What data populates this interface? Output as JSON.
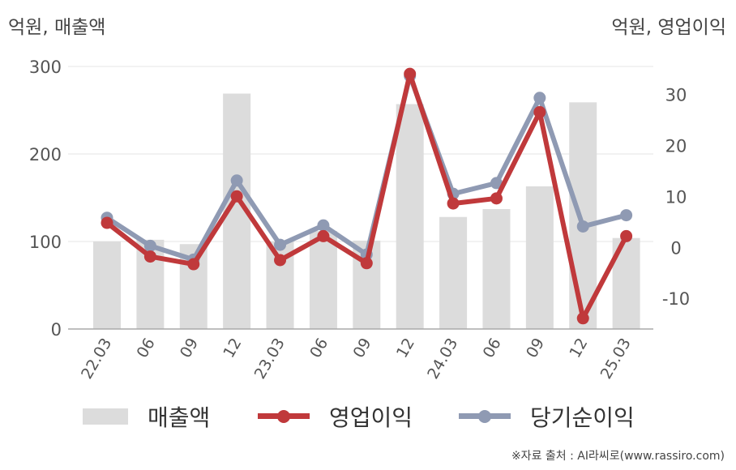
{
  "units": {
    "left": "억원, 매출액",
    "right": "억원, 영업이익"
  },
  "chart_data": {
    "type": "bar",
    "categories": [
      "22.03",
      "06",
      "09",
      "12",
      "23.03",
      "06",
      "09",
      "12",
      "24.03",
      "06",
      "09",
      "12",
      "25.03"
    ],
    "series": [
      {
        "name": "매출액",
        "type": "bar",
        "axis": "left",
        "color": "#dcdcdc",
        "values": [
          100,
          102,
          97,
          269,
          100,
          112,
          101,
          257,
          128,
          137,
          163,
          259,
          104
        ]
      },
      {
        "name": "영업이익",
        "type": "line",
        "axis": "right",
        "color": "#c0393b",
        "values": [
          4.8,
          -1.8,
          -3.3,
          10,
          -2.5,
          2.2,
          -3.1,
          34,
          8.6,
          9.6,
          26.5,
          -13.9,
          2.2
        ]
      },
      {
        "name": "당기순이익",
        "type": "line",
        "axis": "right",
        "color": "#8f9ab3",
        "values": [
          5.8,
          0.3,
          -2.4,
          13.1,
          0.5,
          4.3,
          -1.4,
          33.6,
          10.5,
          12.6,
          29.3,
          4.1,
          6.3
        ]
      }
    ],
    "y_left": {
      "ylim": [
        0,
        300
      ],
      "ticks": [
        0,
        100,
        200,
        300
      ]
    },
    "y_right": {
      "ylim": [
        -16,
        38
      ],
      "ticks": [
        -10,
        0,
        10,
        20,
        30
      ]
    },
    "grid": true,
    "legend_position": "bottom"
  },
  "source": "※자료 출처 : AI라씨로(www.rassiro.com)"
}
